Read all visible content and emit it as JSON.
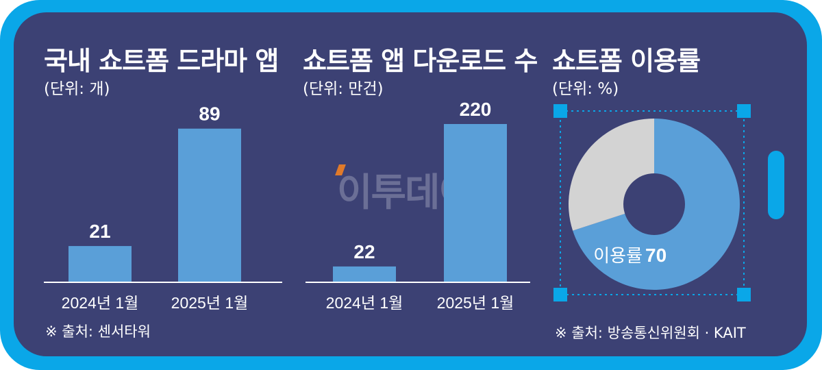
{
  "charts": {
    "left": {
      "title": "국내 쇼트폼 드라마 앱",
      "unit": "(단위: 개)",
      "source": "※ 출처: 센서타워"
    },
    "middle": {
      "title": "쇼트폼 앱 다운로드 수",
      "unit": "(단위: 만건)"
    },
    "right": {
      "title": "쇼트폼 이용률",
      "unit": "(단위: %)",
      "source": "※ 출처: 방송통신위원회 · KAIT",
      "label": "이용률",
      "value_text": "70"
    }
  },
  "watermark": "이투데이",
  "colors": {
    "frame": "#0aa7e8",
    "panel": "#3c4174",
    "bar": "#5a9fd8",
    "pie_main": "#5a9fd8",
    "pie_rest": "#d3d3d3",
    "handles": "#0aa7e8"
  },
  "chart_data": [
    {
      "type": "bar",
      "title": "국내 쇼트폼 드라마 앱",
      "ylabel": "(단위: 개)",
      "categories": [
        "2024년 1월",
        "2025년 1월"
      ],
      "values": [
        21,
        89
      ],
      "value_labels": [
        "21",
        "89"
      ],
      "ylim": [
        0,
        100
      ]
    },
    {
      "type": "bar",
      "title": "쇼트폼 앱 다운로드 수",
      "ylabel": "(단위: 만건)",
      "categories": [
        "2024년 1월",
        "2025년 1월"
      ],
      "values": [
        22,
        220
      ],
      "value_labels": [
        "22",
        "220"
      ],
      "ylim": [
        0,
        240
      ]
    },
    {
      "type": "pie",
      "title": "쇼트폼 이용률",
      "ylabel": "(단위: %)",
      "categories": [
        "이용률",
        ""
      ],
      "values": [
        70,
        30
      ],
      "donut": true
    }
  ]
}
